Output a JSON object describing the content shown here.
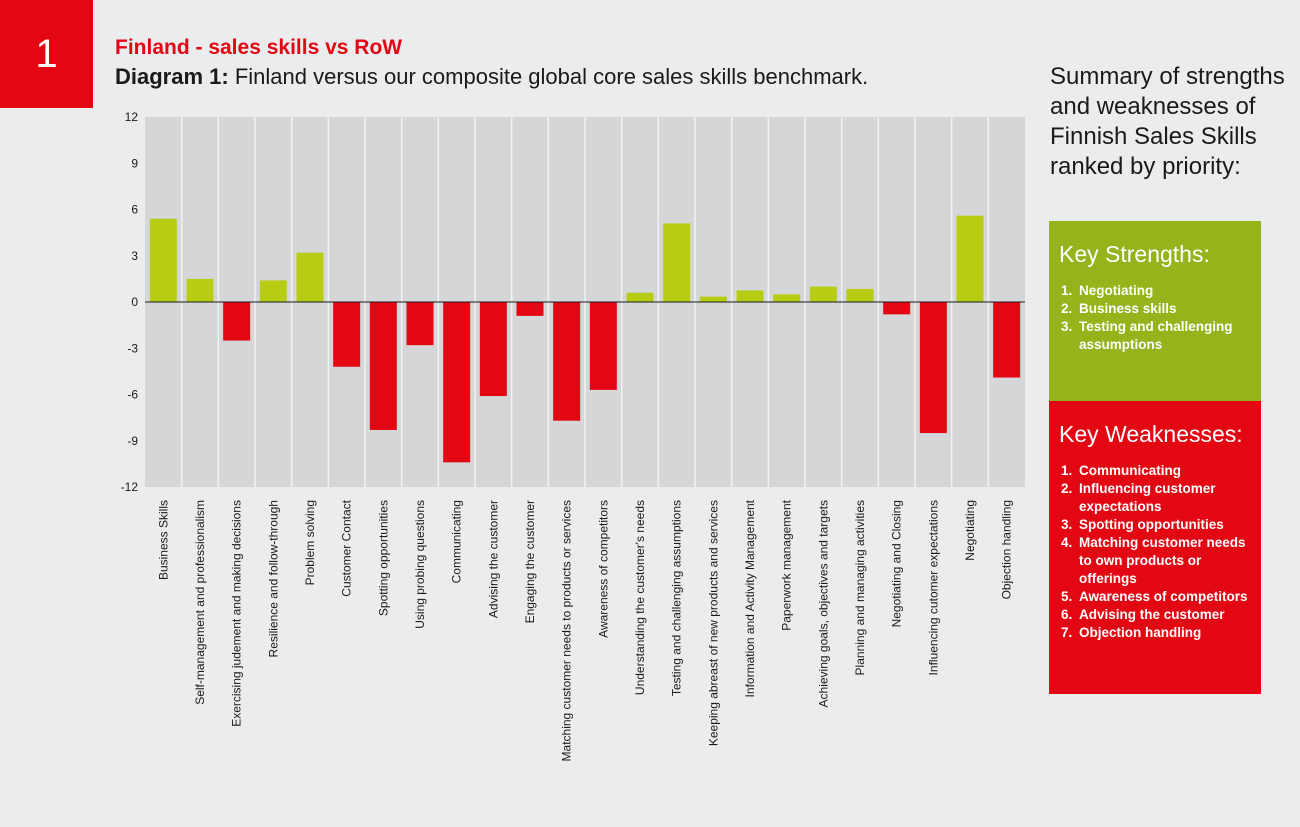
{
  "badge": {
    "number": "1"
  },
  "header": {
    "title": "Finland - sales skills vs RoW",
    "subtitle_bold": "Diagram 1:",
    "subtitle_text": " Finland versus our composite global core sales skills benchmark."
  },
  "summary": {
    "text": "Summary of strengths and weaknesses of Finnish Sales Skills ranked by priority:",
    "strengths_title": "Key Strengths:",
    "strengths": [
      {
        "num": "1.",
        "text": "Negotiating"
      },
      {
        "num": "2.",
        "text": "Business skills"
      },
      {
        "num": "3.",
        "text": "Testing and challenging assumptions"
      }
    ],
    "weaknesses_title": "Key Weaknesses:",
    "weaknesses": [
      {
        "num": "1.",
        "text": "Communicating"
      },
      {
        "num": "2.",
        "text": "Influencing customer expectations"
      },
      {
        "num": "3.",
        "text": "Spotting opportunities"
      },
      {
        "num": "4.",
        "text": "Matching customer needs to own products or offerings"
      },
      {
        "num": "5.",
        "text": "Awareness of competitors"
      },
      {
        "num": "6.",
        "text": "Advising the customer"
      },
      {
        "num": "7.",
        "text": "Objection handling"
      }
    ]
  },
  "colors": {
    "positive": "#b6cd13",
    "negative": "#e30613",
    "plot_bg": "#d4d6d7",
    "badge": "#e30613",
    "strengths_box": "#95b31b"
  },
  "chart_data": {
    "type": "bar",
    "categories": [
      "Business Skills",
      "Self-management and professionalism",
      "Exercising judement and making decisions",
      "Resilience and follow-through",
      "Problem solving",
      "Customer Contact",
      "Spotting opportunities",
      "Using probing questions",
      "Communicating",
      "Advising the customer",
      "Engaging the customer",
      "Matching customer needs to products or services",
      "Awareness of competitors",
      "Understanding the customer's needs",
      "Testing and challenging assumptions",
      "Keeping abreast of new products and services",
      "Information and Activity Management",
      "Paperwork management",
      "Achieving goals, objectives and targets",
      "Planning and managing activities",
      "Negotiating and Closing",
      "Influencing cutomer expectations",
      "Negotiating",
      "Objection handling"
    ],
    "values": [
      5.4,
      1.5,
      -2.5,
      1.4,
      3.2,
      -4.2,
      -8.3,
      -2.8,
      -10.4,
      -6.1,
      -0.9,
      -7.7,
      -5.7,
      0.6,
      5.1,
      0.35,
      0.75,
      0.5,
      1.0,
      0.85,
      -0.8,
      -8.5,
      5.6,
      -4.9
    ],
    "yticks": [
      "12",
      "9",
      "6",
      "3",
      "0",
      "-3",
      "-6",
      "-9",
      "-12"
    ],
    "ylim": [
      -12,
      12
    ],
    "grid": "vertical"
  }
}
